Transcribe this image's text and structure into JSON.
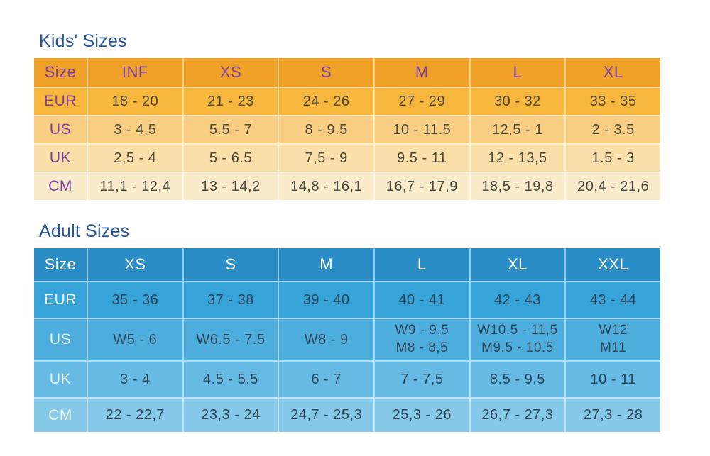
{
  "page": {
    "background": "#ffffff",
    "title_color": "#27569E"
  },
  "kids_table": {
    "title": "Kids' Sizes",
    "columns": [
      "Size",
      "INF",
      "XS",
      "S",
      "M",
      "L",
      "XL"
    ],
    "rows": [
      {
        "label": "EUR",
        "values": [
          "18 - 20",
          "21 - 23",
          "24 - 26",
          "27 - 29",
          "30 - 32",
          "33 - 35"
        ]
      },
      {
        "label": "US",
        "values": [
          "3 - 4,5",
          "5.5 - 7",
          "8 - 9.5",
          "10 - 11.5",
          "12,5 - 1",
          "2 - 3.5"
        ]
      },
      {
        "label": "UK",
        "values": [
          "2,5 - 4",
          "5 - 6.5",
          "7,5 - 9",
          "9.5 - 11",
          "12 - 13,5",
          "1.5 - 3"
        ]
      },
      {
        "label": "CM",
        "values": [
          "11,1 - 12,4",
          "13 - 14,2",
          "14,8 - 16,1",
          "16,7 - 17,9",
          "18,5 - 19,8",
          "20,4 - 21,6"
        ]
      }
    ],
    "colors": {
      "header_bg": "#EFA127",
      "row_bgs": [
        "#F7B63C",
        "#F9CE82",
        "#FADFA8",
        "#FAEBCB"
      ],
      "header_text": "#7D3EA4",
      "label_text": "#7D3EA4",
      "value_text": "#4C4A40"
    }
  },
  "adult_table": {
    "title": "Adult Sizes",
    "columns": [
      "Size",
      "XS",
      "S",
      "M",
      "L",
      "XL",
      "XXL"
    ],
    "rows": [
      {
        "label": "EUR",
        "values": [
          "35 - 36",
          "37 - 38",
          "39 - 40",
          "40 - 41",
          "42 - 43",
          "43 - 44"
        ]
      },
      {
        "label": "US",
        "values": [
          "W5 - 6",
          "W6.5 - 7.5",
          "W8 - 9",
          "W9 - 9,5\nM8 - 8,5",
          "W10.5 - 11,5\nM9.5 - 10.5",
          "W12\nM11"
        ]
      },
      {
        "label": "UK",
        "values": [
          "3 - 4",
          "4.5 - 5.5",
          "6 - 7",
          "7 - 7,5",
          "8.5 - 9.5",
          "10 - 11"
        ]
      },
      {
        "label": "CM",
        "values": [
          "22 - 22,7",
          "23,3 - 24",
          "24,7 - 25,3",
          "25,3 - 26",
          "26,7 - 27,3",
          "27,3 - 28"
        ]
      }
    ],
    "colors": {
      "header_bg": "#2B8DC6",
      "row_bgs": [
        "#36A3D9",
        "#4DAEDE",
        "#66BAE3",
        "#86C9E9"
      ],
      "header_text": "#FFFFFF",
      "label_text": "#EFF7FB",
      "value_text": "#2F4558"
    }
  }
}
